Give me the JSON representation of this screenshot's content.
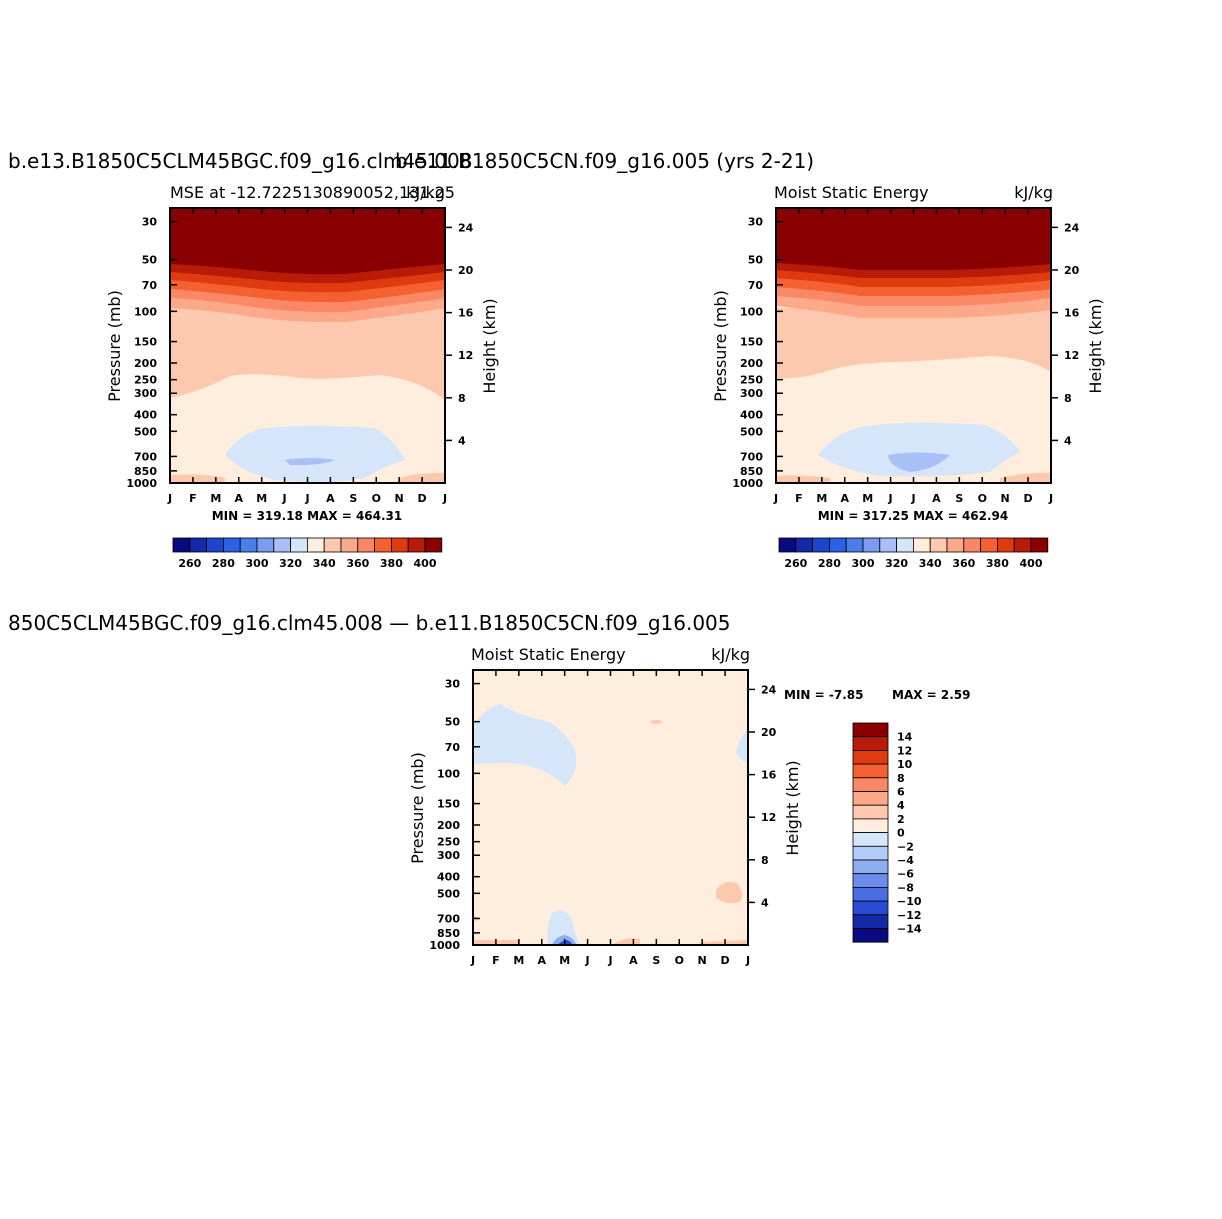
{
  "chart_data": [
    {
      "type": "heatmap",
      "title": "b.e13.B1850C5CLM45BGC.f09_g16.clm45.008",
      "title_overlap": "b.e11.B1850C5CN.f09_g16.005 (yrs 2-21)",
      "left_string": "MSE at -12.7225130890052,131.25",
      "right_string": "kJ/kg",
      "ylabel": "Pressure (mb)",
      "y2label": "Height (km)",
      "x_ticks": [
        "J",
        "F",
        "M",
        "A",
        "M",
        "J",
        "J",
        "A",
        "S",
        "O",
        "N",
        "D",
        "J"
      ],
      "y_ticks": [
        30,
        50,
        70,
        100,
        150,
        200,
        250,
        300,
        400,
        500,
        700,
        850,
        1000
      ],
      "y2_ticks": [
        24,
        20,
        16,
        12,
        8,
        4
      ],
      "ylim": [
        1000,
        25
      ],
      "min_max": "MIN = 319.18   MAX = 464.31",
      "colorbar_labels": [
        "260",
        "280",
        "300",
        "320",
        "340",
        "360",
        "380",
        "400"
      ]
    },
    {
      "type": "heatmap",
      "title": "",
      "left_string": "Moist Static Energy",
      "right_string": "kJ/kg",
      "ylabel": "Pressure (mb)",
      "y2label": "Height (km)",
      "x_ticks": [
        "J",
        "F",
        "M",
        "A",
        "M",
        "J",
        "J",
        "A",
        "S",
        "O",
        "N",
        "D",
        "J"
      ],
      "y_ticks": [
        30,
        50,
        70,
        100,
        150,
        200,
        250,
        300,
        400,
        500,
        700,
        850,
        1000
      ],
      "y2_ticks": [
        24,
        20,
        16,
        12,
        8,
        4
      ],
      "ylim": [
        1000,
        25
      ],
      "min_max": "MIN = 317.25   MAX = 462.94",
      "colorbar_labels": [
        "260",
        "280",
        "300",
        "320",
        "340",
        "360",
        "380",
        "400"
      ]
    },
    {
      "type": "heatmap",
      "title": "850C5CLM45BGC.f09_g16.clm45.008 — b.e11.B1850C5CN.f09_g16.005",
      "left_string": "Moist Static Energy",
      "right_string": "kJ/kg",
      "ylabel": "Pressure (mb)",
      "y2label": "Height (km)",
      "x_ticks": [
        "J",
        "F",
        "M",
        "A",
        "M",
        "J",
        "J",
        "A",
        "S",
        "O",
        "N",
        "D",
        "J"
      ],
      "y_ticks": [
        30,
        50,
        70,
        100,
        150,
        200,
        250,
        300,
        400,
        500,
        700,
        850,
        1000
      ],
      "y2_ticks": [
        24,
        20,
        16,
        12,
        8,
        4
      ],
      "ylim": [
        1000,
        25
      ],
      "min_max_min": "MIN =    -7.85",
      "min_max_max": "MAX =     2.59",
      "colorbar_labels": [
        "14",
        "12",
        "10",
        "8",
        "6",
        "4",
        "2",
        "0",
        "−2",
        "−4",
        "−6",
        "−8",
        "−10",
        "−12",
        "−14"
      ]
    }
  ],
  "colors": {
    "abs_scale": [
      "#0a0a80",
      "#1428a8",
      "#1e46cc",
      "#2a62e6",
      "#4a7ee8",
      "#7a9cf0",
      "#a8c0f6",
      "#d6e6fa",
      "#ffeedd",
      "#fdc9ae",
      "#fca98a",
      "#fa8866",
      "#f46030",
      "#e03a10",
      "#b81c08",
      "#8a0000"
    ],
    "diff_scale": [
      "#8a0000",
      "#b81c08",
      "#e03a10",
      "#f46030",
      "#fa8866",
      "#fca98a",
      "#fdc9ae",
      "#ffeedd",
      "#d6e6fa",
      "#b4ccf8",
      "#8eaef2",
      "#6a8cec",
      "#4a6ee4",
      "#2a4cd4",
      "#1428a8",
      "#0a0a80"
    ]
  }
}
